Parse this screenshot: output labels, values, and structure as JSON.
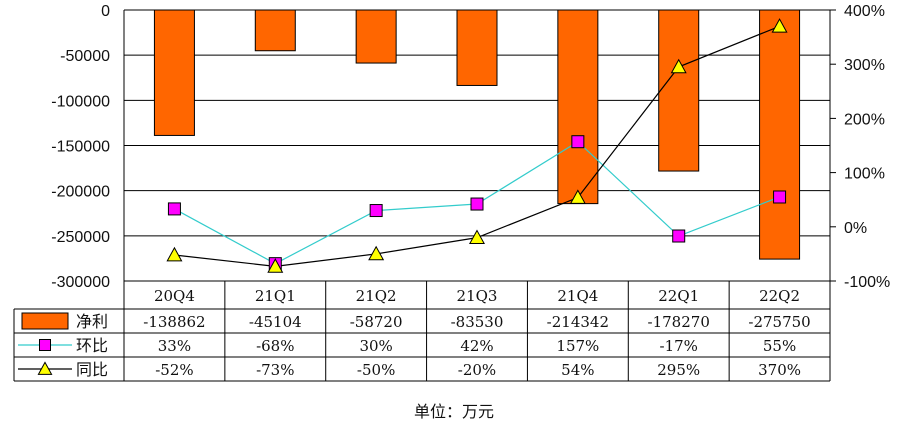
{
  "chart_data": {
    "type": "bar",
    "categories": [
      "20Q4",
      "21Q1",
      "21Q2",
      "21Q3",
      "21Q4",
      "22Q1",
      "22Q2"
    ],
    "series": [
      {
        "name": "净利",
        "kind": "bar",
        "axis": "left",
        "values": [
          -138862,
          -45104,
          -58720,
          -83530,
          -214342,
          -178270,
          -275750
        ],
        "labels": [
          "-138862",
          "-45104",
          "-58720",
          "-83530",
          "-214342",
          "-178270",
          "-275750"
        ],
        "color": "#FF6600"
      },
      {
        "name": "环比",
        "kind": "line",
        "axis": "right",
        "marker": "square",
        "values": [
          33,
          -68,
          30,
          42,
          157,
          -17,
          55
        ],
        "labels": [
          "33%",
          "-68%",
          "30%",
          "42%",
          "157%",
          "-17%",
          "55%"
        ],
        "color": "#33CCCC",
        "marker_color": "#FF00FF"
      },
      {
        "name": "同比",
        "kind": "line",
        "axis": "right",
        "marker": "triangle",
        "values": [
          -52,
          -73,
          -50,
          -20,
          54,
          295,
          370
        ],
        "labels": [
          "-52%",
          "-73%",
          "-50%",
          "-20%",
          "54%",
          "295%",
          "370%"
        ],
        "color": "#000000",
        "marker_color": "#FFFF00"
      }
    ],
    "y_left": {
      "ticks": [
        "0",
        "-50000",
        "-100000",
        "-150000",
        "-200000",
        "-250000",
        "-300000"
      ],
      "range": [
        -300000,
        0
      ]
    },
    "y_right": {
      "ticks": [
        "400%",
        "300%",
        "200%",
        "100%",
        "0%",
        "-100%"
      ],
      "range": [
        -100,
        400
      ]
    },
    "grid": true,
    "legend": "data-table"
  },
  "footer": {
    "unit": "单位：万元"
  }
}
